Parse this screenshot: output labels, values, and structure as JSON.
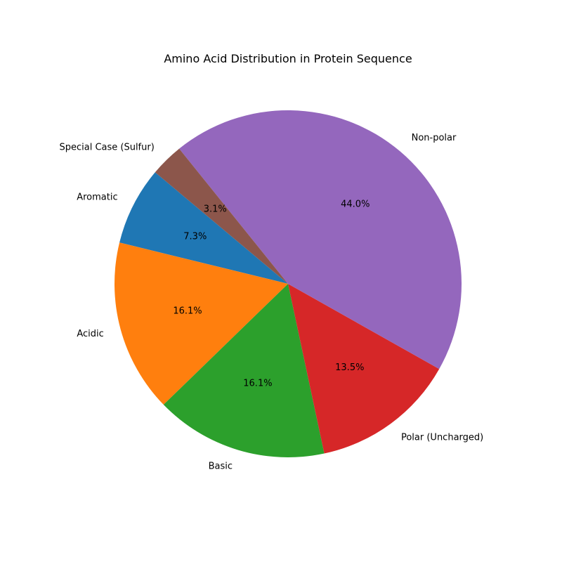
{
  "chart_data": {
    "type": "pie",
    "title": "Amino Acid Distribution in Protein Sequence",
    "start_angle_deg": 140,
    "direction": "counterclockwise",
    "slices": [
      {
        "label": "Aromatic",
        "value": 7.3,
        "pct_label": "7.3%",
        "color": "#1f77b4"
      },
      {
        "label": "Acidic",
        "value": 16.1,
        "pct_label": "16.1%",
        "color": "#ff7f0e"
      },
      {
        "label": "Basic",
        "value": 16.1,
        "pct_label": "16.1%",
        "color": "#2ca02c"
      },
      {
        "label": "Polar (Uncharged)",
        "value": 13.5,
        "pct_label": "13.5%",
        "color": "#d62728"
      },
      {
        "label": "Non-polar",
        "value": 44.0,
        "pct_label": "44.0%",
        "color": "#9467bd"
      },
      {
        "label": "Special Case (Sulfur)",
        "value": 3.1,
        "pct_label": "3.1%",
        "color": "#8c564b"
      }
    ]
  }
}
